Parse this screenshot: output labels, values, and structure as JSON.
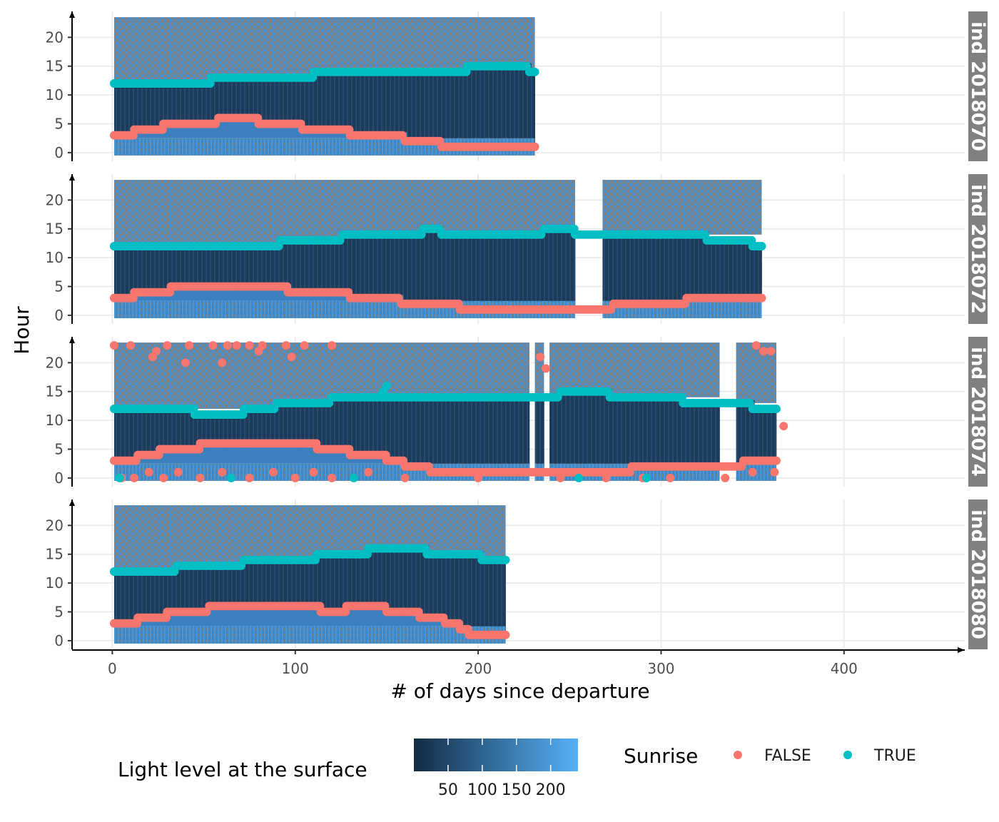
{
  "chart_data": {
    "type": "heatmap",
    "xlabel": "# of days since departure",
    "ylabel": "Hour",
    "xlim": [
      -22,
      466
    ],
    "ylim": [
      -1.5,
      24.5
    ],
    "x_ticks": [
      0,
      100,
      200,
      300,
      400
    ],
    "y_ticks": [
      0,
      5,
      10,
      15,
      20
    ],
    "grid": true,
    "legend_position": "bottom",
    "fill_legend": {
      "title": "Light level at the surface",
      "ticks": [
        50,
        100,
        150,
        200
      ],
      "range": [
        0,
        240
      ],
      "low_color": "#132B43",
      "high_color": "#56B1F7",
      "na_color": "#808080"
    },
    "color_legend": {
      "title": "Sunrise",
      "entries": [
        {
          "label": "FALSE",
          "color": "#F8766D"
        },
        {
          "label": "TRUE",
          "color": "#00BFC4"
        }
      ]
    },
    "panels": [
      {
        "label": "ind 2018070",
        "light_day_ranges": [
          [
            1,
            231
          ]
        ],
        "sunrise_true": [
          [
            1,
            12
          ],
          [
            20,
            12
          ],
          [
            40,
            12
          ],
          [
            52,
            12
          ],
          [
            54,
            13
          ],
          [
            72,
            13
          ],
          [
            90,
            13
          ],
          [
            110,
            14
          ],
          [
            140,
            14
          ],
          [
            180,
            14
          ],
          [
            194,
            15
          ],
          [
            215,
            15
          ],
          [
            225,
            15
          ],
          [
            228,
            14
          ],
          [
            231,
            14
          ]
        ],
        "sunrise_false": [
          [
            1,
            3
          ],
          [
            10,
            3
          ],
          [
            12,
            4
          ],
          [
            26,
            4
          ],
          [
            28,
            5
          ],
          [
            55,
            5
          ],
          [
            58,
            6
          ],
          [
            78,
            6
          ],
          [
            80,
            5
          ],
          [
            100,
            5
          ],
          [
            104,
            4
          ],
          [
            128,
            4
          ],
          [
            130,
            3
          ],
          [
            160,
            2
          ],
          [
            176,
            2
          ],
          [
            180,
            1
          ],
          [
            231,
            1
          ]
        ]
      },
      {
        "label": "ind 2018072",
        "light_day_ranges": [
          [
            1,
            253
          ],
          [
            268,
            355
          ]
        ],
        "sunrise_true": [
          [
            1,
            12
          ],
          [
            40,
            12
          ],
          [
            88,
            12
          ],
          [
            92,
            13
          ],
          [
            120,
            13
          ],
          [
            126,
            14
          ],
          [
            148,
            14
          ],
          [
            170,
            15
          ],
          [
            180,
            14
          ],
          [
            230,
            14
          ],
          [
            236,
            15
          ],
          [
            253,
            14
          ],
          [
            268,
            14
          ],
          [
            280,
            14
          ],
          [
            300,
            14
          ],
          [
            325,
            13
          ],
          [
            345,
            13
          ],
          [
            350,
            12
          ],
          [
            355,
            12
          ]
        ],
        "sunrise_false": [
          [
            1,
            3
          ],
          [
            10,
            3
          ],
          [
            12,
            4
          ],
          [
            30,
            4
          ],
          [
            32,
            5
          ],
          [
            94,
            5
          ],
          [
            96,
            4
          ],
          [
            120,
            4
          ],
          [
            130,
            3
          ],
          [
            155,
            3
          ],
          [
            158,
            2
          ],
          [
            185,
            2
          ],
          [
            190,
            1
          ],
          [
            253,
            1
          ],
          [
            268,
            1
          ],
          [
            274,
            2
          ],
          [
            310,
            2
          ],
          [
            314,
            3
          ],
          [
            355,
            3
          ]
        ]
      },
      {
        "label": "ind 2018074",
        "light_day_ranges": [
          [
            1,
            228
          ],
          [
            231,
            236
          ],
          [
            239,
            332
          ],
          [
            341,
            363
          ]
        ],
        "sunrise_true": [
          [
            1,
            12
          ],
          [
            25,
            12
          ],
          [
            40,
            12
          ],
          [
            45,
            11
          ],
          [
            64,
            11
          ],
          [
            72,
            12
          ],
          [
            90,
            13
          ],
          [
            120,
            14
          ],
          [
            145,
            14
          ],
          [
            175,
            14
          ],
          [
            200,
            14
          ],
          [
            236,
            14
          ],
          [
            245,
            15
          ],
          [
            265,
            15
          ],
          [
            272,
            14
          ],
          [
            310,
            14
          ],
          [
            312,
            13
          ],
          [
            332,
            13
          ],
          [
            341,
            13
          ],
          [
            350,
            12
          ],
          [
            363,
            12
          ]
        ],
        "sunrise_false": [
          [
            1,
            3
          ],
          [
            10,
            3
          ],
          [
            14,
            4
          ],
          [
            24,
            4
          ],
          [
            26,
            5
          ],
          [
            46,
            5
          ],
          [
            48,
            6
          ],
          [
            70,
            6
          ],
          [
            72,
            6
          ],
          [
            110,
            6
          ],
          [
            112,
            5
          ],
          [
            128,
            5
          ],
          [
            130,
            4
          ],
          [
            150,
            3
          ],
          [
            160,
            2
          ],
          [
            170,
            2
          ],
          [
            174,
            1
          ],
          [
            236,
            1
          ],
          [
            239,
            1
          ],
          [
            280,
            1
          ],
          [
            284,
            2
          ],
          [
            332,
            2
          ],
          [
            341,
            2
          ],
          [
            345,
            3
          ],
          [
            363,
            3
          ]
        ],
        "sunrise_false_scatter": [
          [
            1,
            23
          ],
          [
            10,
            23
          ],
          [
            22,
            21
          ],
          [
            24,
            22
          ],
          [
            30,
            23
          ],
          [
            40,
            20
          ],
          [
            42,
            23
          ],
          [
            55,
            23
          ],
          [
            60,
            20
          ],
          [
            63,
            23
          ],
          [
            68,
            23
          ],
          [
            75,
            23
          ],
          [
            80,
            22
          ],
          [
            82,
            23
          ],
          [
            95,
            23
          ],
          [
            98,
            21
          ],
          [
            105,
            23
          ],
          [
            120,
            23
          ],
          [
            234,
            21
          ],
          [
            237,
            19
          ],
          [
            352,
            23
          ],
          [
            356,
            22
          ],
          [
            360,
            22
          ],
          [
            367,
            9
          ],
          [
            5,
            0
          ],
          [
            12,
            0
          ],
          [
            20,
            1
          ],
          [
            28,
            0
          ],
          [
            36,
            1
          ],
          [
            48,
            0
          ],
          [
            60,
            1
          ],
          [
            75,
            0
          ],
          [
            88,
            1
          ],
          [
            100,
            0
          ],
          [
            110,
            1
          ],
          [
            120,
            0
          ],
          [
            140,
            1
          ],
          [
            160,
            0
          ],
          [
            185,
            1
          ],
          [
            200,
            0
          ],
          [
            220,
            1
          ],
          [
            245,
            0
          ],
          [
            270,
            0
          ],
          [
            290,
            0
          ],
          [
            305,
            0
          ],
          [
            335,
            0
          ],
          [
            350,
            1
          ],
          [
            362,
            1
          ]
        ],
        "sunrise_true_scatter": [
          [
            4,
            0
          ],
          [
            65,
            0
          ],
          [
            132,
            0
          ],
          [
            255,
            0
          ],
          [
            292,
            0
          ],
          [
            150,
            16
          ],
          [
            148,
            15
          ]
        ]
      },
      {
        "label": "ind 2018080",
        "light_day_ranges": [
          [
            1,
            215
          ]
        ],
        "sunrise_true": [
          [
            1,
            12
          ],
          [
            25,
            12
          ],
          [
            35,
            13
          ],
          [
            60,
            13
          ],
          [
            72,
            14
          ],
          [
            105,
            14
          ],
          [
            112,
            15
          ],
          [
            135,
            15
          ],
          [
            140,
            16
          ],
          [
            168,
            16
          ],
          [
            172,
            15
          ],
          [
            198,
            15
          ],
          [
            202,
            14
          ],
          [
            215,
            14
          ]
        ],
        "sunrise_false": [
          [
            1,
            3
          ],
          [
            12,
            3
          ],
          [
            14,
            4
          ],
          [
            28,
            4
          ],
          [
            30,
            5
          ],
          [
            50,
            5
          ],
          [
            53,
            6
          ],
          [
            112,
            6
          ],
          [
            114,
            5
          ],
          [
            128,
            6
          ],
          [
            150,
            5
          ],
          [
            160,
            5
          ],
          [
            168,
            4
          ],
          [
            178,
            4
          ],
          [
            182,
            3
          ],
          [
            190,
            2
          ],
          [
            195,
            1
          ],
          [
            215,
            1
          ]
        ]
      }
    ]
  }
}
